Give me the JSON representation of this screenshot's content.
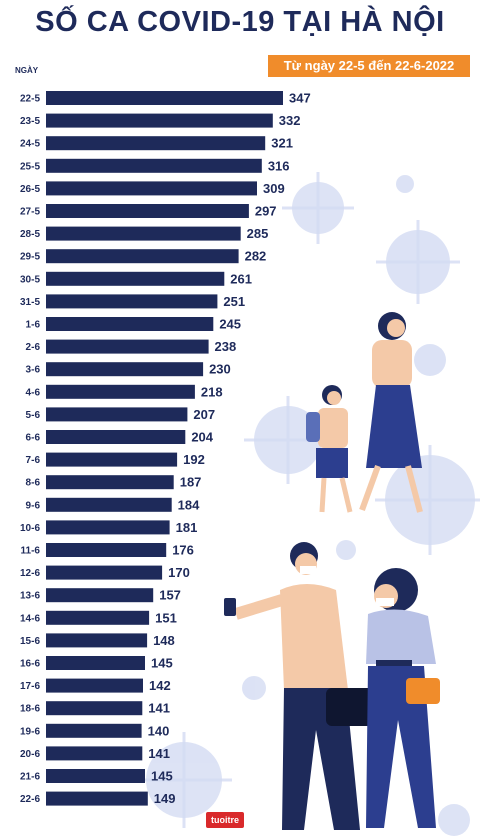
{
  "title": "SỐ CA COVID-19 TẠI HÀ NỘI",
  "subtitle": "Từ ngày 22-5 đến 22-6-2022",
  "axis_label": "NGÀY",
  "brand_logo_text": "tuoitre",
  "colors": {
    "bar": "#1e2a5a",
    "title": "#1e2a5a",
    "accent": "#f08c2b",
    "virus": "#d4dcf3",
    "logo": "#d9292b"
  },
  "chart_data": {
    "type": "bar",
    "orientation": "horizontal",
    "title": "SỐ CA COVID-19 TẠI HÀ NỘI",
    "subtitle": "Từ ngày 22-5 đến 22-6-2022",
    "ylabel": "NGÀY",
    "xlabel": "",
    "xlim": [
      0,
      347
    ],
    "grid": false,
    "legend": "none",
    "categories": [
      "22-5",
      "23-5",
      "24-5",
      "25-5",
      "26-5",
      "27-5",
      "28-5",
      "29-5",
      "30-5",
      "31-5",
      "1-6",
      "2-6",
      "3-6",
      "4-6",
      "5-6",
      "6-6",
      "7-6",
      "8-6",
      "9-6",
      "10-6",
      "11-6",
      "12-6",
      "13-6",
      "14-6",
      "15-6",
      "16-6",
      "17-6",
      "18-6",
      "19-6",
      "20-6",
      "21-6",
      "22-6"
    ],
    "values": [
      347,
      332,
      321,
      316,
      309,
      297,
      285,
      282,
      261,
      251,
      245,
      238,
      230,
      218,
      207,
      204,
      192,
      187,
      184,
      181,
      176,
      170,
      157,
      151,
      148,
      145,
      142,
      141,
      140,
      141,
      145,
      149
    ]
  }
}
